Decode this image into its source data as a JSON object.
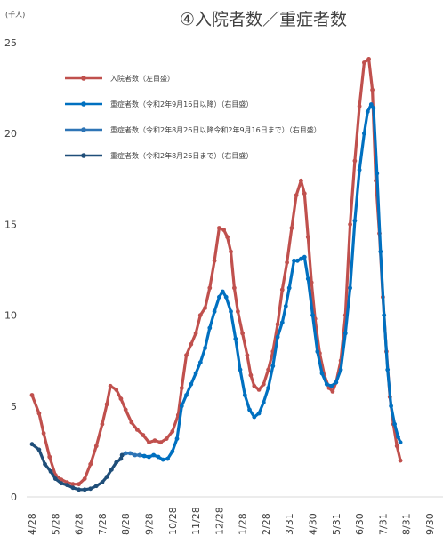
{
  "chart_data": {
    "type": "line",
    "title": "④入院者数／重症者数",
    "unit_label": "(千人)",
    "ylim": [
      0,
      25
    ],
    "yticks": [
      "0",
      "5",
      "10",
      "15",
      "20",
      "25"
    ],
    "grid": false,
    "legend_position": "top-left",
    "categories": [
      "4/28",
      "5/28",
      "6/28",
      "7/28",
      "8/28",
      "9/28",
      "10/28",
      "11/28",
      "12/28",
      "1/28",
      "2/28",
      "3/31",
      "4/30",
      "5/31",
      "6/30",
      "7/31",
      "8/31",
      "9/30"
    ],
    "series": [
      {
        "name": "入院者数（左目盛）",
        "color": "#c0504d",
        "points": [
          [
            0.0,
            5.6
          ],
          [
            0.3,
            4.6
          ],
          [
            0.5,
            3.5
          ],
          [
            0.75,
            2.2
          ],
          [
            1.0,
            1.2
          ],
          [
            1.25,
            0.95
          ],
          [
            1.5,
            0.8
          ],
          [
            1.75,
            0.7
          ],
          [
            2.0,
            0.7
          ],
          [
            2.25,
            1.0
          ],
          [
            2.5,
            1.8
          ],
          [
            2.75,
            2.8
          ],
          [
            3.0,
            4.0
          ],
          [
            3.2,
            5.1
          ],
          [
            3.35,
            6.1
          ],
          [
            3.6,
            5.9
          ],
          [
            3.8,
            5.4
          ],
          [
            4.0,
            4.8
          ],
          [
            4.25,
            4.1
          ],
          [
            4.5,
            3.7
          ],
          [
            4.75,
            3.4
          ],
          [
            5.0,
            3.0
          ],
          [
            5.25,
            3.1
          ],
          [
            5.5,
            3.0
          ],
          [
            5.75,
            3.2
          ],
          [
            6.0,
            3.6
          ],
          [
            6.25,
            4.5
          ],
          [
            6.4,
            6.0
          ],
          [
            6.6,
            7.8
          ],
          [
            6.8,
            8.4
          ],
          [
            7.0,
            9.0
          ],
          [
            7.2,
            10.0
          ],
          [
            7.4,
            10.4
          ],
          [
            7.6,
            11.5
          ],
          [
            7.8,
            13.0
          ],
          [
            8.0,
            14.8
          ],
          [
            8.2,
            14.7
          ],
          [
            8.35,
            14.3
          ],
          [
            8.5,
            13.5
          ],
          [
            8.65,
            11.5
          ],
          [
            8.8,
            10.2
          ],
          [
            9.0,
            9.0
          ],
          [
            9.2,
            7.8
          ],
          [
            9.35,
            6.7
          ],
          [
            9.5,
            6.1
          ],
          [
            9.7,
            5.9
          ],
          [
            9.9,
            6.2
          ],
          [
            10.1,
            7.0
          ],
          [
            10.3,
            8.0
          ],
          [
            10.5,
            9.5
          ],
          [
            10.7,
            11.4
          ],
          [
            10.9,
            12.9
          ],
          [
            11.1,
            14.8
          ],
          [
            11.3,
            16.6
          ],
          [
            11.5,
            17.4
          ],
          [
            11.65,
            16.7
          ],
          [
            11.8,
            14.3
          ],
          [
            11.95,
            11.8
          ],
          [
            12.1,
            9.8
          ],
          [
            12.3,
            7.9
          ],
          [
            12.5,
            6.7
          ],
          [
            12.7,
            6.0
          ],
          [
            12.85,
            5.8
          ],
          [
            13.0,
            6.3
          ],
          [
            13.2,
            7.5
          ],
          [
            13.4,
            10.0
          ],
          [
            13.6,
            15.0
          ],
          [
            13.8,
            18.5
          ],
          [
            14.0,
            21.5
          ],
          [
            14.2,
            23.9
          ],
          [
            14.4,
            24.1
          ],
          [
            14.55,
            22.4
          ],
          [
            14.7,
            17.4
          ],
          [
            14.85,
            14.5
          ],
          [
            15.0,
            11.0
          ],
          [
            15.15,
            8.0
          ],
          [
            15.3,
            5.5
          ],
          [
            15.45,
            4.0
          ],
          [
            15.6,
            2.8
          ],
          [
            15.75,
            2.0
          ]
        ]
      },
      {
        "name": "重症者数（令和2年9月16日以降）（右目盛）",
        "color": "#0070c0",
        "points": [
          [
            4.6,
            2.3
          ],
          [
            4.8,
            2.25
          ],
          [
            5.0,
            2.2
          ],
          [
            5.2,
            2.3
          ],
          [
            5.4,
            2.2
          ],
          [
            5.6,
            2.05
          ],
          [
            5.8,
            2.1
          ],
          [
            6.0,
            2.5
          ],
          [
            6.2,
            3.2
          ],
          [
            6.4,
            5.0
          ],
          [
            6.6,
            5.6
          ],
          [
            6.8,
            6.2
          ],
          [
            7.0,
            6.8
          ],
          [
            7.2,
            7.4
          ],
          [
            7.4,
            8.2
          ],
          [
            7.6,
            9.3
          ],
          [
            7.8,
            10.2
          ],
          [
            8.0,
            11.0
          ],
          [
            8.15,
            11.3
          ],
          [
            8.3,
            11.0
          ],
          [
            8.5,
            10.2
          ],
          [
            8.7,
            8.7
          ],
          [
            8.9,
            7.0
          ],
          [
            9.1,
            5.6
          ],
          [
            9.3,
            4.8
          ],
          [
            9.5,
            4.4
          ],
          [
            9.7,
            4.6
          ],
          [
            9.9,
            5.2
          ],
          [
            10.1,
            6.0
          ],
          [
            10.3,
            7.2
          ],
          [
            10.5,
            8.8
          ],
          [
            10.7,
            9.6
          ],
          [
            10.85,
            10.5
          ],
          [
            11.0,
            11.5
          ],
          [
            11.2,
            13.0
          ],
          [
            11.35,
            13.0
          ],
          [
            11.5,
            13.1
          ],
          [
            11.65,
            13.2
          ],
          [
            11.8,
            12.0
          ],
          [
            12.0,
            10.0
          ],
          [
            12.2,
            8.0
          ],
          [
            12.4,
            6.8
          ],
          [
            12.6,
            6.2
          ],
          [
            12.8,
            6.1
          ],
          [
            13.0,
            6.3
          ],
          [
            13.2,
            7.0
          ],
          [
            13.4,
            9.0
          ],
          [
            13.6,
            11.5
          ],
          [
            13.8,
            15.2
          ],
          [
            14.0,
            18.0
          ],
          [
            14.2,
            20.0
          ],
          [
            14.35,
            21.2
          ],
          [
            14.5,
            21.6
          ],
          [
            14.6,
            21.4
          ],
          [
            14.75,
            17.8
          ],
          [
            14.9,
            13.5
          ],
          [
            15.05,
            10.0
          ],
          [
            15.2,
            7.0
          ],
          [
            15.35,
            5.0
          ],
          [
            15.5,
            4.0
          ],
          [
            15.65,
            3.3
          ],
          [
            15.75,
            3.0
          ]
        ]
      },
      {
        "name": "重症者数（令和2年8月26日以降令和2年9月16日まで）（右目盛）",
        "color": "#2e75b6",
        "points": [
          [
            3.85,
            2.3
          ],
          [
            4.0,
            2.4
          ],
          [
            4.2,
            2.4
          ],
          [
            4.4,
            2.3
          ],
          [
            4.6,
            2.3
          ]
        ]
      },
      {
        "name": "重症者数（令和2年8月26日まで）（右目盛）",
        "color": "#1f4e79",
        "points": [
          [
            0.0,
            2.9
          ],
          [
            0.3,
            2.6
          ],
          [
            0.55,
            1.8
          ],
          [
            0.8,
            1.4
          ],
          [
            1.0,
            1.0
          ],
          [
            1.25,
            0.75
          ],
          [
            1.5,
            0.65
          ],
          [
            1.75,
            0.5
          ],
          [
            2.0,
            0.4
          ],
          [
            2.25,
            0.4
          ],
          [
            2.5,
            0.45
          ],
          [
            2.75,
            0.6
          ],
          [
            3.0,
            0.8
          ],
          [
            3.2,
            1.1
          ],
          [
            3.4,
            1.5
          ],
          [
            3.6,
            1.9
          ],
          [
            3.8,
            2.1
          ],
          [
            3.85,
            2.3
          ]
        ]
      }
    ]
  }
}
